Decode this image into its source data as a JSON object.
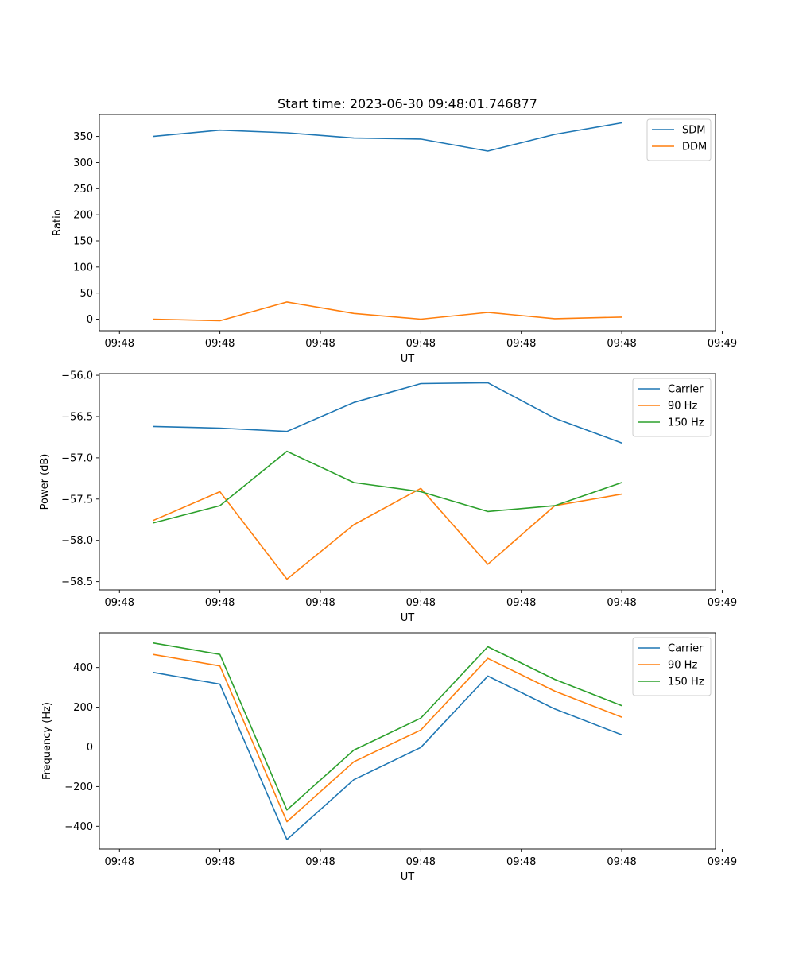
{
  "figure": {
    "title": "Start time: 2023-06-30 09:48:01.746877"
  },
  "chart_data": [
    {
      "type": "line",
      "title": "Start time: 2023-06-30 09:48:01.746877",
      "xlabel": "UT",
      "ylabel": "Ratio",
      "x": [
        1,
        2,
        3,
        4,
        5,
        6,
        7,
        8
      ],
      "xlim": [
        0.2,
        9.4
      ],
      "x_ticks": [
        0.5,
        2.0,
        3.5,
        5.0,
        6.5,
        8.0,
        9.5
      ],
      "x_tick_labels": [
        "09:48",
        "09:48",
        "09:48",
        "09:48",
        "09:48",
        "09:48",
        "09:49"
      ],
      "ylim": [
        -22,
        392
      ],
      "y_ticks": [
        0,
        50,
        100,
        150,
        200,
        250,
        300,
        350
      ],
      "y_tick_labels": [
        "0",
        "50",
        "100",
        "150",
        "200",
        "250",
        "300",
        "350"
      ],
      "legend": "top-right",
      "grid": false,
      "series": [
        {
          "name": "SDM",
          "color": "#1f77b4",
          "values": [
            350,
            362,
            357,
            347,
            345,
            322,
            354,
            376
          ]
        },
        {
          "name": "DDM",
          "color": "#ff7f0e",
          "values": [
            0,
            -3,
            33,
            11,
            0,
            13,
            1,
            4
          ]
        }
      ]
    },
    {
      "type": "line",
      "title": "",
      "xlabel": "UT",
      "ylabel": "Power (dB)",
      "x": [
        1,
        2,
        3,
        4,
        5,
        6,
        7,
        8
      ],
      "xlim": [
        0.2,
        9.4
      ],
      "x_ticks": [
        0.5,
        2.0,
        3.5,
        5.0,
        6.5,
        8.0,
        9.5
      ],
      "x_tick_labels": [
        "09:48",
        "09:48",
        "09:48",
        "09:48",
        "09:48",
        "09:48",
        "09:49"
      ],
      "ylim": [
        -58.6,
        -55.98
      ],
      "y_ticks": [
        -58.5,
        -58.0,
        -57.5,
        -57.0,
        -56.5,
        -56.0
      ],
      "y_tick_labels": [
        "−58.5",
        "−58.0",
        "−57.5",
        "−57.0",
        "−56.5",
        "−56.0"
      ],
      "legend": "top-right",
      "grid": false,
      "series": [
        {
          "name": "Carrier",
          "color": "#1f77b4",
          "values": [
            -56.62,
            -56.64,
            -56.68,
            -56.33,
            -56.1,
            -56.09,
            -56.52,
            -56.82
          ]
        },
        {
          "name": "90 Hz",
          "color": "#ff7f0e",
          "values": [
            -57.76,
            -57.41,
            -58.47,
            -57.81,
            -57.37,
            -58.29,
            -57.58,
            -57.44
          ]
        },
        {
          "name": "150 Hz",
          "color": "#2ca02c",
          "values": [
            -57.79,
            -57.58,
            -56.92,
            -57.3,
            -57.41,
            -57.65,
            -57.58,
            -57.3
          ]
        }
      ]
    },
    {
      "type": "line",
      "title": "",
      "xlabel": "UT",
      "ylabel": "Frequency (Hz)",
      "x": [
        1,
        2,
        3,
        4,
        5,
        6,
        7,
        8
      ],
      "xlim": [
        0.2,
        9.4
      ],
      "x_ticks": [
        0.5,
        2.0,
        3.5,
        5.0,
        6.5,
        8.0,
        9.5
      ],
      "x_tick_labels": [
        "09:48",
        "09:48",
        "09:48",
        "09:48",
        "09:48",
        "09:48",
        "09:49"
      ],
      "ylim": [
        -515,
        575
      ],
      "y_ticks": [
        -400,
        -200,
        0,
        200,
        400
      ],
      "y_tick_labels": [
        "−400",
        "−200",
        "0",
        "200",
        "400"
      ],
      "legend": "top-right",
      "grid": false,
      "series": [
        {
          "name": "Carrier",
          "color": "#1f77b4",
          "values": [
            376,
            316,
            -467,
            -165,
            -3,
            357,
            191,
            61
          ]
        },
        {
          "name": "90 Hz",
          "color": "#ff7f0e",
          "values": [
            466,
            408,
            -377,
            -75,
            85,
            446,
            281,
            150
          ]
        },
        {
          "name": "150 Hz",
          "color": "#2ca02c",
          "values": [
            524,
            466,
            -318,
            -16,
            145,
            505,
            340,
            208
          ]
        }
      ]
    }
  ]
}
